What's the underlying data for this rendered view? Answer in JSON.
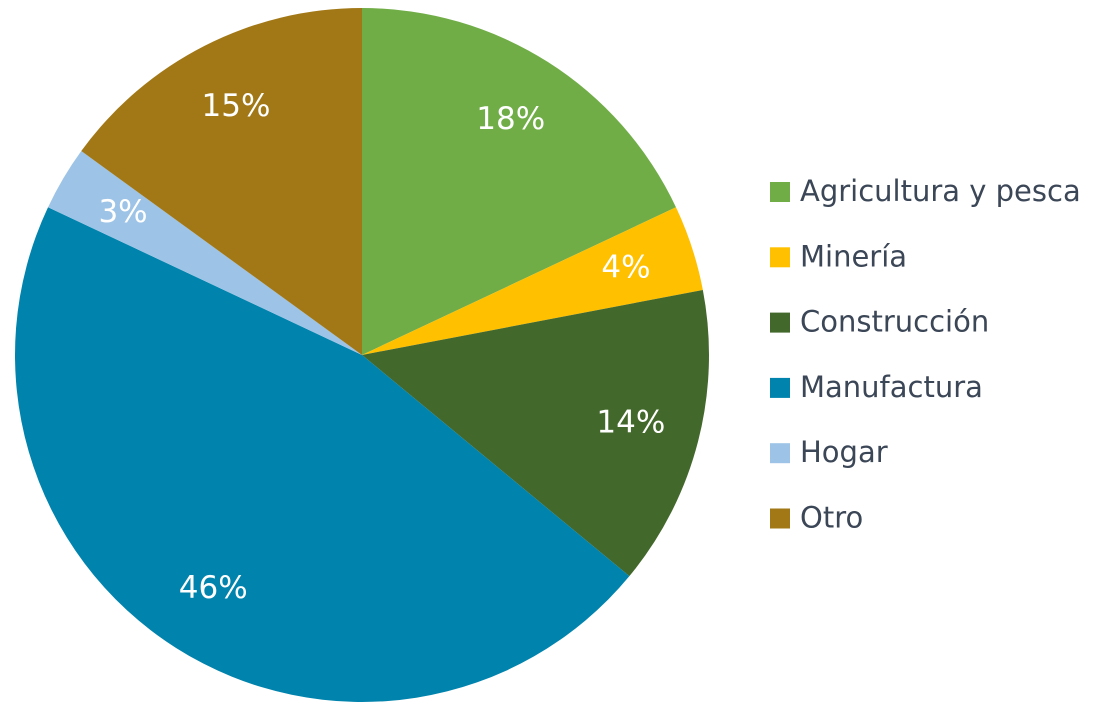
{
  "chart_data": {
    "type": "pie",
    "categories": [
      "Agricultura y pesca",
      "Minería",
      "Construcción",
      "Manufactura",
      "Hogar",
      "Otro"
    ],
    "values": [
      18,
      4,
      14,
      46,
      3,
      15
    ],
    "value_labels": [
      "18%",
      "4%",
      "14%",
      "46%",
      "3%",
      "15%"
    ],
    "colors": [
      "#70ad47",
      "#ffc000",
      "#43682b",
      "#0083ad",
      "#9dc3e6",
      "#a27817"
    ],
    "legend": "right"
  }
}
